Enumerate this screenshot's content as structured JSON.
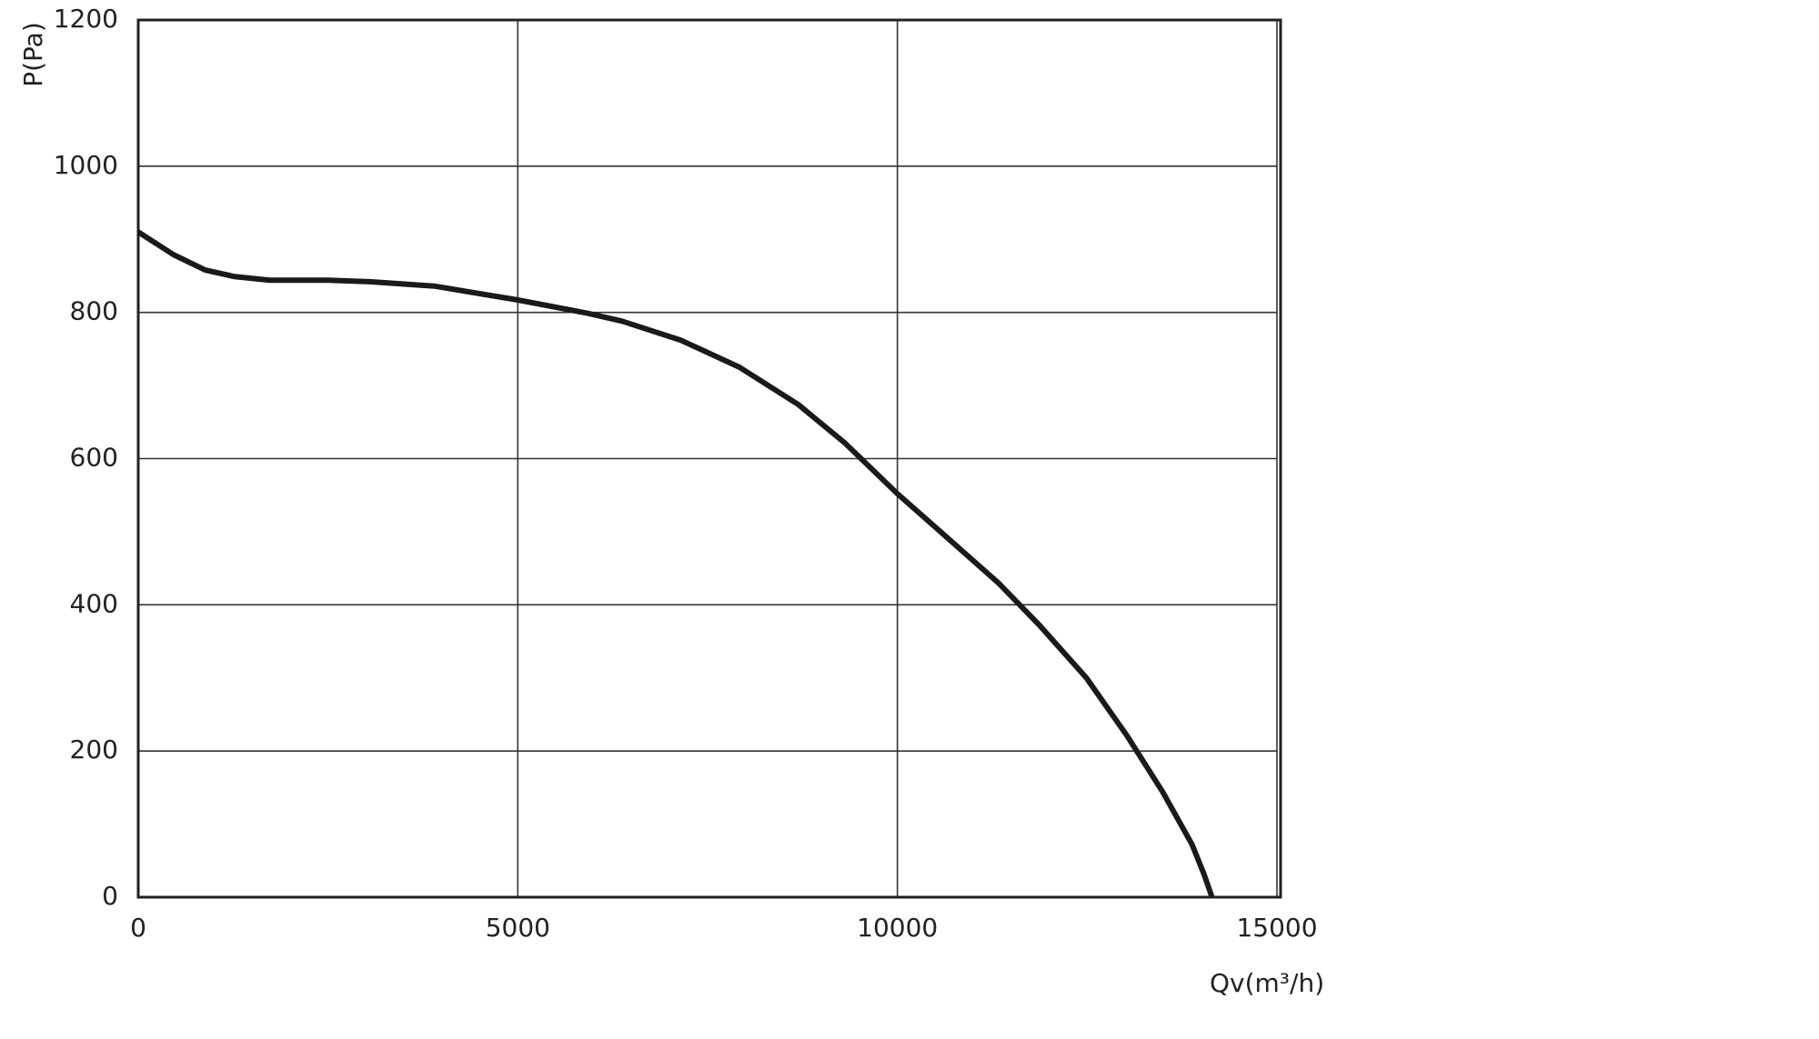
{
  "chart_data": {
    "type": "line",
    "x_label": "Qv(m³/h)",
    "y_label": "P(Pa)",
    "xlim": [
      0,
      15000
    ],
    "xticks": [
      0,
      5000,
      10000,
      15000
    ],
    "ylim": [
      0,
      1200
    ],
    "yticks": [
      0,
      200,
      400,
      600,
      800,
      1000,
      1200
    ],
    "grid": true,
    "series": [
      {
        "color": "#1a1a1a",
        "x": [
          0,
          464,
          882,
          1268,
          1732,
          2506,
          3047,
          3898,
          5000,
          5910,
          6374,
          7147,
          7920,
          8694,
          9312,
          10000,
          10557,
          11330,
          11872,
          12490,
          13031,
          13495,
          13882,
          14037,
          14145
        ],
        "values": [
          910,
          879,
          858,
          849,
          844,
          844,
          842,
          836,
          817,
          799,
          788,
          762,
          725,
          674,
          621,
          552,
          501,
          430,
          372,
          300,
          220,
          144,
          72,
          32,
          0
        ]
      }
    ]
  }
}
